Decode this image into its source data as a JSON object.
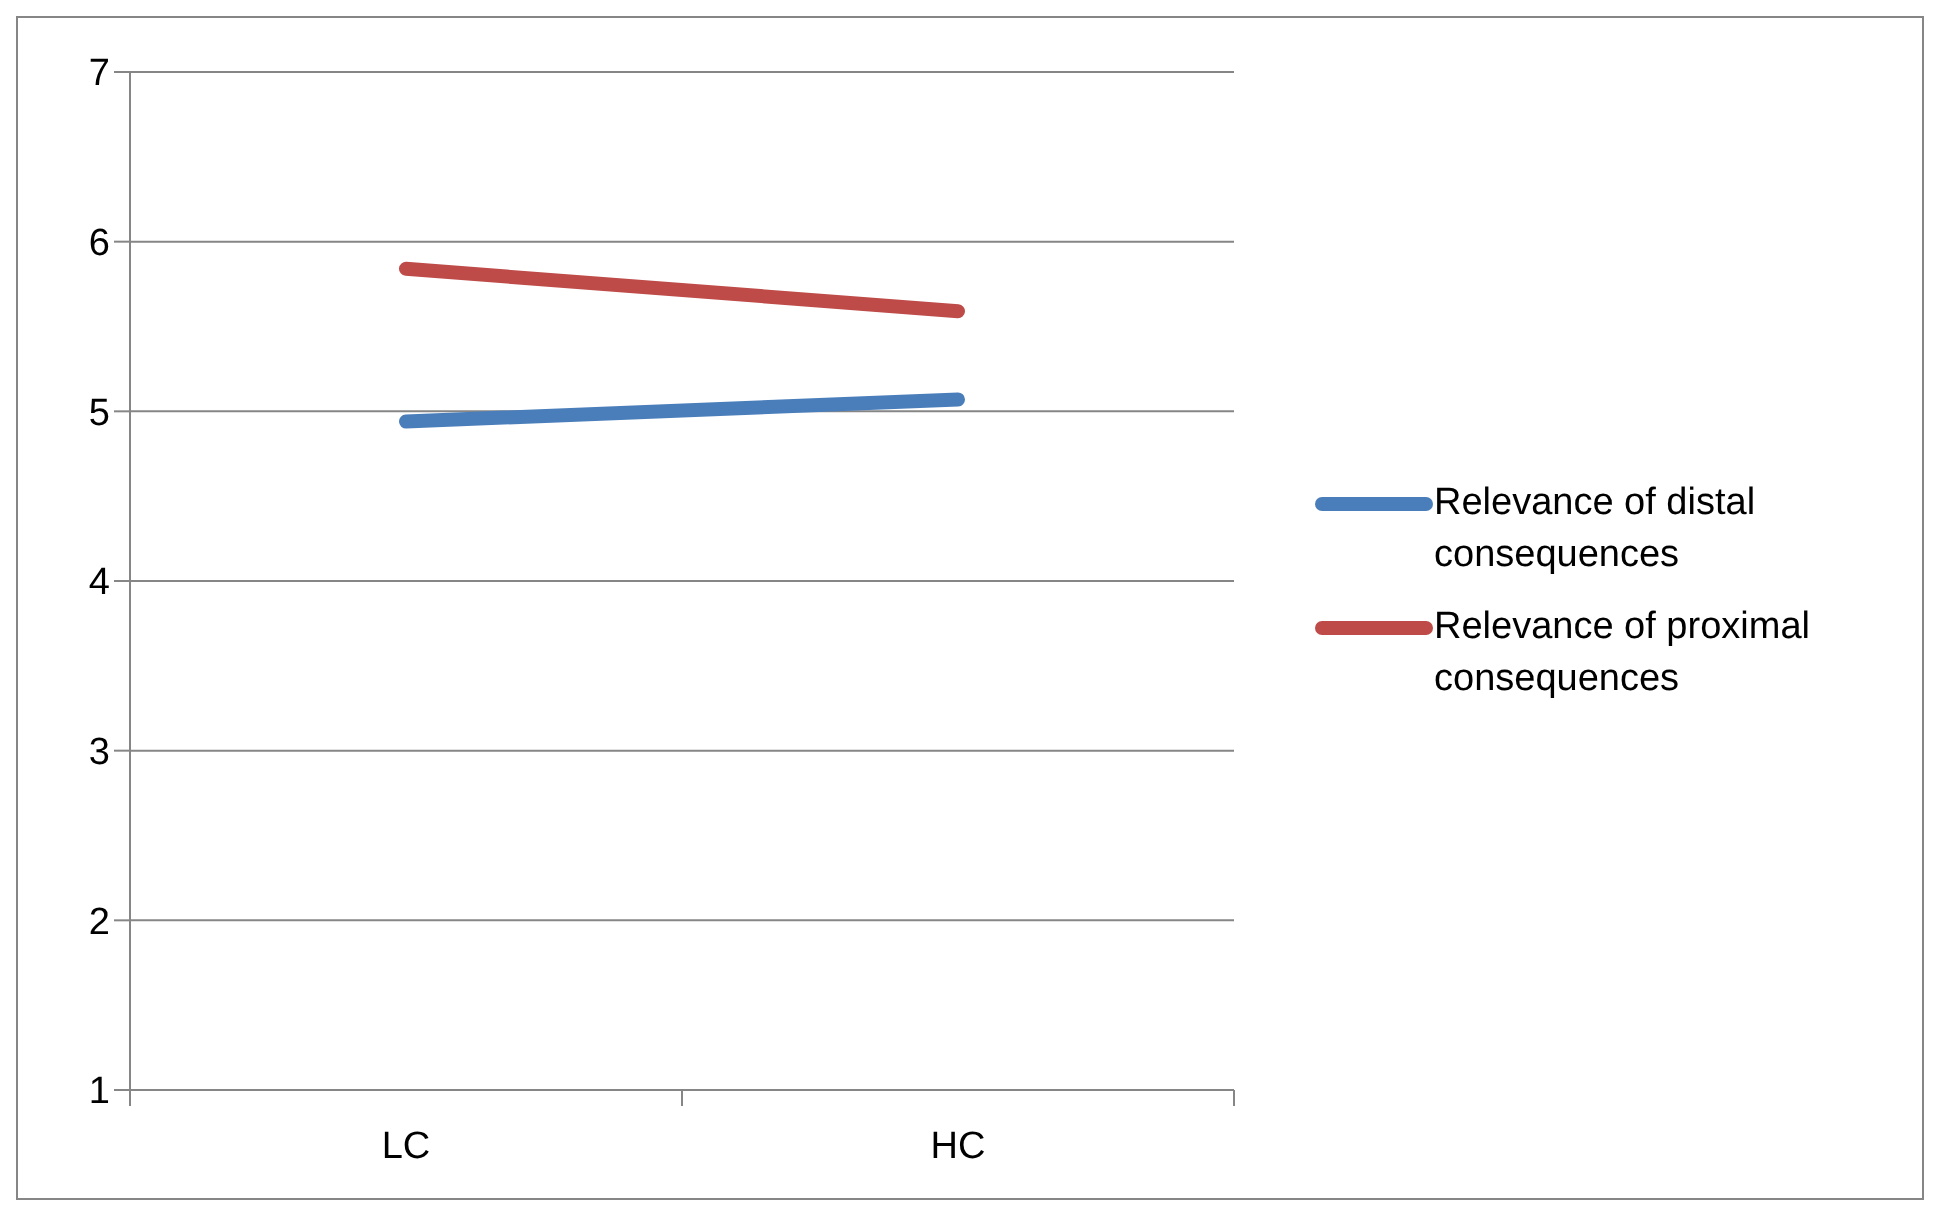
{
  "chart_data": {
    "type": "line",
    "categories": [
      "LC",
      "HC"
    ],
    "series": [
      {
        "name": "Relevance of distal consequences",
        "color": "#4a7ebb",
        "values": [
          4.94,
          5.07
        ]
      },
      {
        "name": "Relevance of proximal consequences",
        "color": "#be4b48",
        "values": [
          5.84,
          5.59
        ]
      }
    ],
    "ylim": [
      1,
      7
    ],
    "yticks": [
      1,
      2,
      3,
      4,
      5,
      6,
      7
    ],
    "grid": "y",
    "legend": "right",
    "marker": "none",
    "line_style": "solid"
  }
}
